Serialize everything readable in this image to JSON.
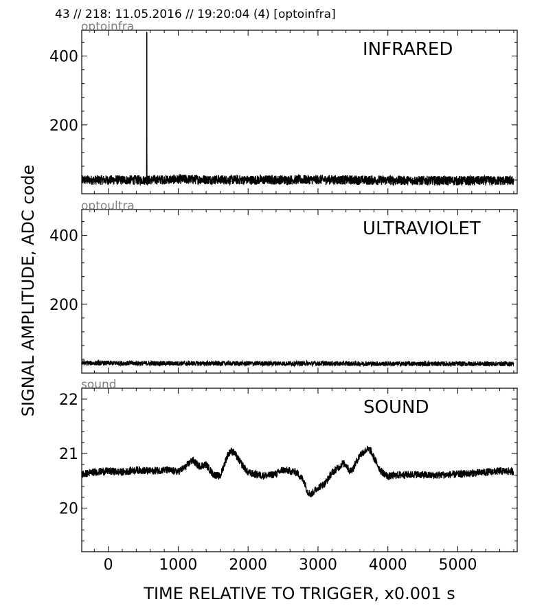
{
  "header": {
    "text": "43 // 218:   11.05.2016 // 19:20:04 (4)  [optoinfra]"
  },
  "xlabel": "TIME RELATIVE TO TRIGGER,   x0.001 s",
  "ylabel": "SIGNAL AMPLITUDE,  ADC code",
  "colors": {
    "signal": "#000000",
    "channel_label": "#808080",
    "frame": "#000000"
  },
  "chart_data": [
    {
      "type": "line",
      "channel": "optoinfra",
      "title": "INFRARED",
      "xlim": [
        -380,
        5850
      ],
      "ylim": [
        0,
        475
      ],
      "xticks": [
        0,
        1000,
        2000,
        3000,
        4000,
        5000
      ],
      "yticks": [
        200,
        400
      ],
      "x": [
        -380,
        0,
        500,
        549,
        550,
        551,
        552,
        600,
        1000,
        2000,
        3000,
        4000,
        5000,
        5800
      ],
      "y": [
        40,
        40,
        40,
        40,
        470,
        470,
        40,
        40,
        42,
        40,
        41,
        39,
        38,
        38
      ],
      "noise_band": 14
    },
    {
      "type": "line",
      "channel": "optoultra",
      "title": "ULTRAVIOLET",
      "xlim": [
        -380,
        5850
      ],
      "ylim": [
        0,
        475
      ],
      "xticks": [
        0,
        1000,
        2000,
        3000,
        4000,
        5000
      ],
      "yticks": [
        200,
        400
      ],
      "x": [
        -380,
        0,
        1000,
        2000,
        3000,
        4000,
        5000,
        5800
      ],
      "y": [
        29,
        29,
        28,
        28,
        28,
        27,
        27,
        27
      ],
      "noise_band": 7
    },
    {
      "type": "line",
      "channel": "sound",
      "title": "SOUND",
      "xlim": [
        -380,
        5850
      ],
      "ylim": [
        19.2,
        22.2
      ],
      "xticks": [
        0,
        1000,
        2000,
        3000,
        4000,
        5000
      ],
      "yticks": [
        20,
        21,
        22
      ],
      "x": [
        -380,
        -200,
        0,
        200,
        400,
        600,
        800,
        1000,
        1100,
        1200,
        1300,
        1400,
        1500,
        1600,
        1700,
        1750,
        1800,
        1900,
        2000,
        2100,
        2200,
        2300,
        2400,
        2500,
        2600,
        2700,
        2800,
        2850,
        2900,
        3000,
        3100,
        3200,
        3300,
        3350,
        3400,
        3450,
        3500,
        3600,
        3700,
        3750,
        3800,
        3900,
        4000,
        4100,
        4200,
        4400,
        4600,
        4800,
        5000,
        5200,
        5400,
        5600,
        5800
      ],
      "y": [
        20.62,
        20.66,
        20.68,
        20.66,
        20.7,
        20.68,
        20.7,
        20.67,
        20.75,
        20.88,
        20.77,
        20.8,
        20.62,
        20.58,
        20.95,
        21.05,
        21.02,
        20.82,
        20.65,
        20.62,
        20.6,
        20.6,
        20.63,
        20.7,
        20.68,
        20.65,
        20.5,
        20.3,
        20.25,
        20.38,
        20.45,
        20.65,
        20.75,
        20.82,
        20.8,
        20.68,
        20.72,
        20.98,
        21.08,
        21.06,
        20.92,
        20.68,
        20.58,
        20.6,
        20.61,
        20.62,
        20.6,
        20.61,
        20.62,
        20.64,
        20.66,
        20.68,
        20.67
      ],
      "noise_band": 0.07
    }
  ]
}
